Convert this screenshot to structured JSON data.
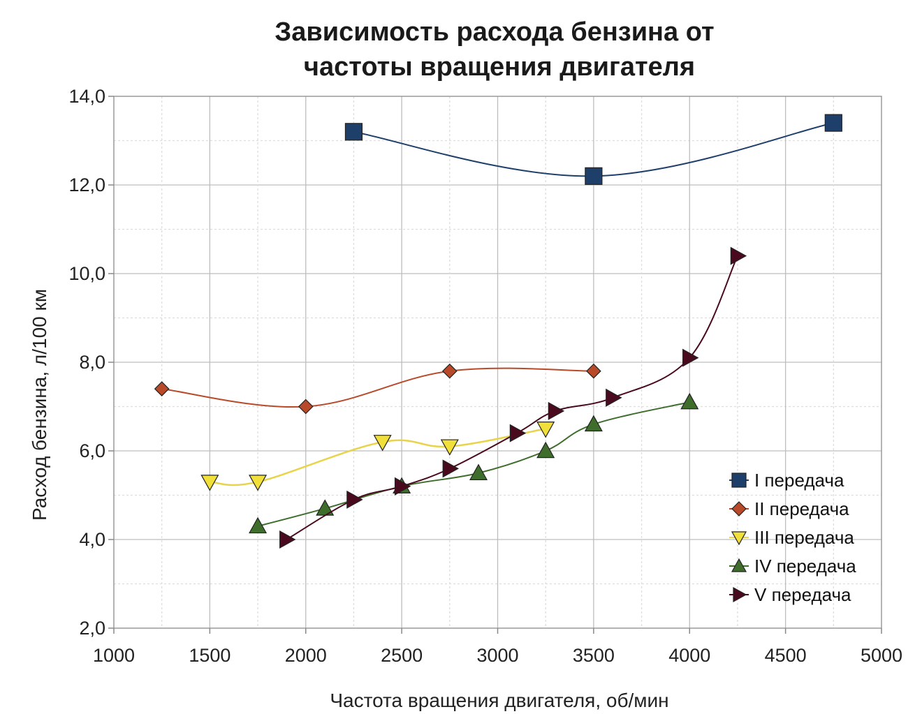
{
  "chart_data": {
    "type": "line",
    "title": [
      "Зависимость расхода бензина от",
      "частоты вращения двигателя"
    ],
    "xlabel": "Частота вращения двигателя, об/мин",
    "ylabel": "Расход бензина, л/100 км",
    "xlim": [
      1000,
      5000
    ],
    "ylim": [
      2,
      14
    ],
    "xticks": [
      1000,
      1500,
      2000,
      2500,
      3000,
      3500,
      4000,
      4500,
      5000
    ],
    "xtick_labels": [
      "1000",
      "1500",
      "2000",
      "2500",
      "3000",
      "3500",
      "4000",
      "4500",
      "5000"
    ],
    "yticks": [
      2,
      4,
      6,
      8,
      10,
      12,
      14
    ],
    "ytick_labels": [
      "2,0",
      "4,0",
      "6,0",
      "8,0",
      "10,0",
      "12,0",
      "14,0"
    ],
    "grid": true,
    "legend_position": "right",
    "series": [
      {
        "name": "I передача",
        "color": "#1f3f6b",
        "marker": "square",
        "x": [
          2250,
          3500,
          4750
        ],
        "y": [
          13.2,
          12.2,
          13.4
        ]
      },
      {
        "name": "II передача",
        "color": "#b84a2a",
        "marker": "diamond",
        "x": [
          1250,
          2000,
          2750,
          3500
        ],
        "y": [
          7.4,
          7.0,
          7.8,
          7.8
        ]
      },
      {
        "name": "III передача",
        "color": "#f2e03a",
        "marker": "triangle-down",
        "x": [
          1500,
          1750,
          2400,
          2750,
          3250
        ],
        "y": [
          5.3,
          5.3,
          6.2,
          6.1,
          6.5
        ]
      },
      {
        "name": "IV передача",
        "color": "#3f6e2c",
        "marker": "triangle-up",
        "x": [
          1750,
          2100,
          2500,
          2900,
          3250,
          3500,
          4000
        ],
        "y": [
          4.3,
          4.7,
          5.2,
          5.5,
          6.0,
          6.6,
          7.1
        ]
      },
      {
        "name": "V передача",
        "color": "#4a0a1e",
        "marker": "triangle-right",
        "x": [
          1900,
          2250,
          2500,
          2750,
          3100,
          3300,
          3600,
          4000,
          4250
        ],
        "y": [
          4.0,
          4.9,
          5.2,
          5.6,
          6.4,
          6.9,
          7.2,
          8.1,
          10.4
        ]
      }
    ]
  }
}
